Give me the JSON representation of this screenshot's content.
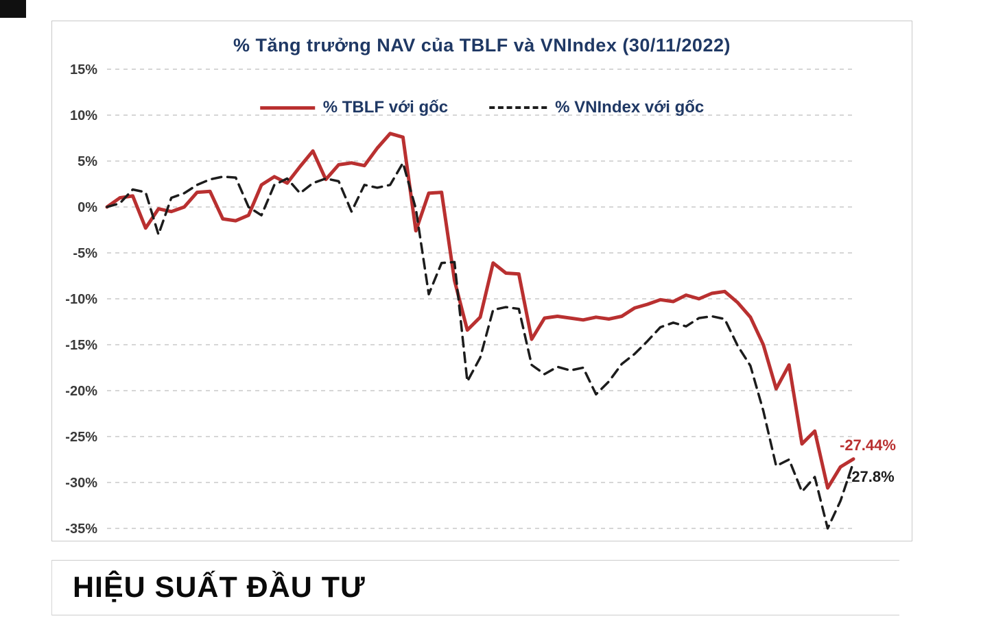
{
  "page": {
    "heading": "HIỆU SUẤT ĐẦU TƯ"
  },
  "chart_data": {
    "type": "line",
    "title": "% Tăng trưởng NAV của TBLF và VNIndex (30/11/2022)",
    "title_color": "#1f3864",
    "xlabel": "",
    "ylabel": "",
    "ylim": [
      -35,
      15
    ],
    "ytick_step": 5,
    "ytick_labels": [
      "15%",
      "10%",
      "5%",
      "0%",
      "-5%",
      "-10%",
      "-15%",
      "-20%",
      "-25%",
      "-30%",
      "-35%"
    ],
    "grid": "horizontal-dashed",
    "legend_position": "top-center",
    "series": [
      {
        "name": "% TBLF với gốc",
        "color": "#b93030",
        "style": "solid",
        "end_label": "-27.44%",
        "values": [
          0,
          1.0,
          1.2,
          -2.3,
          -0.2,
          -0.5,
          0.0,
          1.6,
          1.7,
          -1.3,
          -1.5,
          -0.9,
          2.4,
          3.3,
          2.6,
          4.4,
          6.1,
          3.0,
          4.6,
          4.8,
          4.5,
          6.4,
          8.0,
          7.6,
          -2.6,
          1.5,
          1.6,
          -8.0,
          -13.4,
          -12.0,
          -6.1,
          -7.2,
          -7.3,
          -14.4,
          -12.1,
          -11.9,
          -12.1,
          -12.3,
          -12.0,
          -12.2,
          -11.9,
          -11.0,
          -10.6,
          -10.1,
          -10.3,
          -9.6,
          -10.0,
          -9.4,
          -9.2,
          -10.4,
          -12.0,
          -15.0,
          -19.8,
          -17.2,
          -25.8,
          -24.4,
          -30.6,
          -28.3,
          -27.44
        ]
      },
      {
        "name": "% VNIndex với gốc",
        "color": "#1c1c1c",
        "style": "dashed",
        "end_label": "-27.8%",
        "values": [
          0,
          0.4,
          1.9,
          1.6,
          -3.0,
          1.0,
          1.5,
          2.4,
          3.0,
          3.3,
          3.2,
          0.0,
          -0.9,
          2.4,
          3.1,
          1.5,
          2.6,
          3.1,
          2.8,
          -0.5,
          2.4,
          2.1,
          2.4,
          4.8,
          -0.2,
          -9.5,
          -6.1,
          -6.0,
          -19.0,
          -16.4,
          -11.2,
          -10.9,
          -11.1,
          -17.2,
          -18.2,
          -17.4,
          -17.8,
          -17.5,
          -20.4,
          -19.0,
          -17.1,
          -16.0,
          -14.6,
          -13.1,
          -12.6,
          -13.0,
          -12.1,
          -11.9,
          -12.2,
          -15.1,
          -17.3,
          -22.2,
          -28.2,
          -27.5,
          -31.0,
          -29.4,
          -35.0,
          -32.0,
          -27.8
        ]
      }
    ]
  }
}
